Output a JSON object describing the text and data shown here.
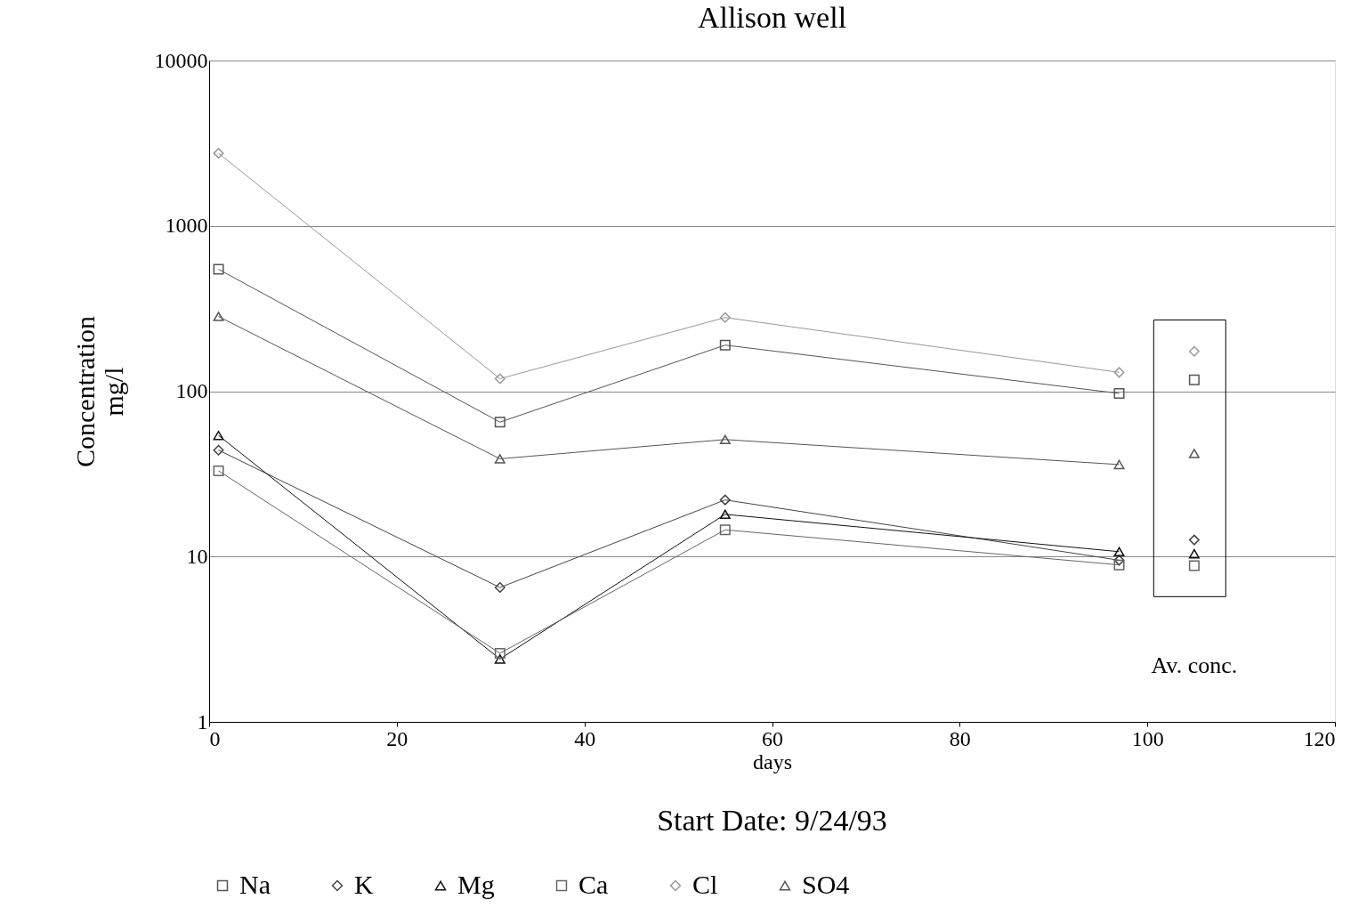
{
  "chart_data": {
    "type": "line",
    "title": "Allison well",
    "xlabel": "days",
    "ylabel": "Concentration\nmg/l",
    "annotations": [
      "Start Date: 9/24/93",
      "Av. conc."
    ],
    "log": true,
    "grid": "y",
    "legend": "bottom",
    "xlim": [
      0,
      120
    ],
    "xticks": [
      0,
      20,
      40,
      60,
      80,
      100,
      120
    ],
    "ylim": [
      1,
      10000
    ],
    "yticks": [
      1,
      10,
      100,
      1000,
      10000
    ],
    "series": [
      {
        "name": "Na",
        "color": "#555555",
        "marker": "square",
        "x": [
          1,
          31,
          55,
          97
        ],
        "values": [
          546,
          65,
          190,
          97
        ]
      },
      {
        "name": "K",
        "color": "#444444",
        "marker": "diamond",
        "x": [
          1,
          31,
          55,
          97
        ],
        "values": [
          44,
          6.5,
          22,
          9.5
        ]
      },
      {
        "name": "Mg",
        "color": "#111111",
        "marker": "triangle",
        "x": [
          1,
          31,
          55,
          97
        ],
        "values": [
          54,
          2.4,
          18,
          10.7
        ]
      },
      {
        "name": "Ca",
        "color": "#666666",
        "marker": "square",
        "x": [
          1,
          31,
          55,
          97
        ],
        "values": [
          33,
          2.6,
          14.5,
          8.9
        ]
      },
      {
        "name": "Cl",
        "color": "#999999",
        "marker": "diamond",
        "x": [
          1,
          31,
          55,
          97
        ],
        "values": [
          2750,
          119,
          279,
          130
        ]
      },
      {
        "name": "SO4",
        "color": "#555555",
        "marker": "triangle",
        "x": [
          1,
          31,
          55,
          97
        ],
        "values": [
          283,
          39,
          51,
          36
        ]
      },
      {
        "type": "scatter",
        "color": "#555555",
        "marker": "square",
        "x": [
          105
        ],
        "values": [
          117
        ]
      },
      {
        "type": "scatter",
        "color": "#444444",
        "marker": "diamond",
        "x": [
          105
        ],
        "values": [
          12.6
        ]
      },
      {
        "type": "scatter",
        "color": "#111111",
        "marker": "triangle",
        "x": [
          105
        ],
        "values": [
          10.4
        ]
      },
      {
        "type": "scatter",
        "color": "#666666",
        "marker": "square",
        "x": [
          105
        ],
        "values": [
          8.8
        ]
      },
      {
        "type": "scatter",
        "color": "#999999",
        "marker": "diamond",
        "x": [
          105
        ],
        "values": [
          174
        ]
      },
      {
        "type": "scatter",
        "color": "#555555",
        "marker": "triangle",
        "x": [
          105
        ],
        "values": [
          42
        ]
      }
    ]
  }
}
